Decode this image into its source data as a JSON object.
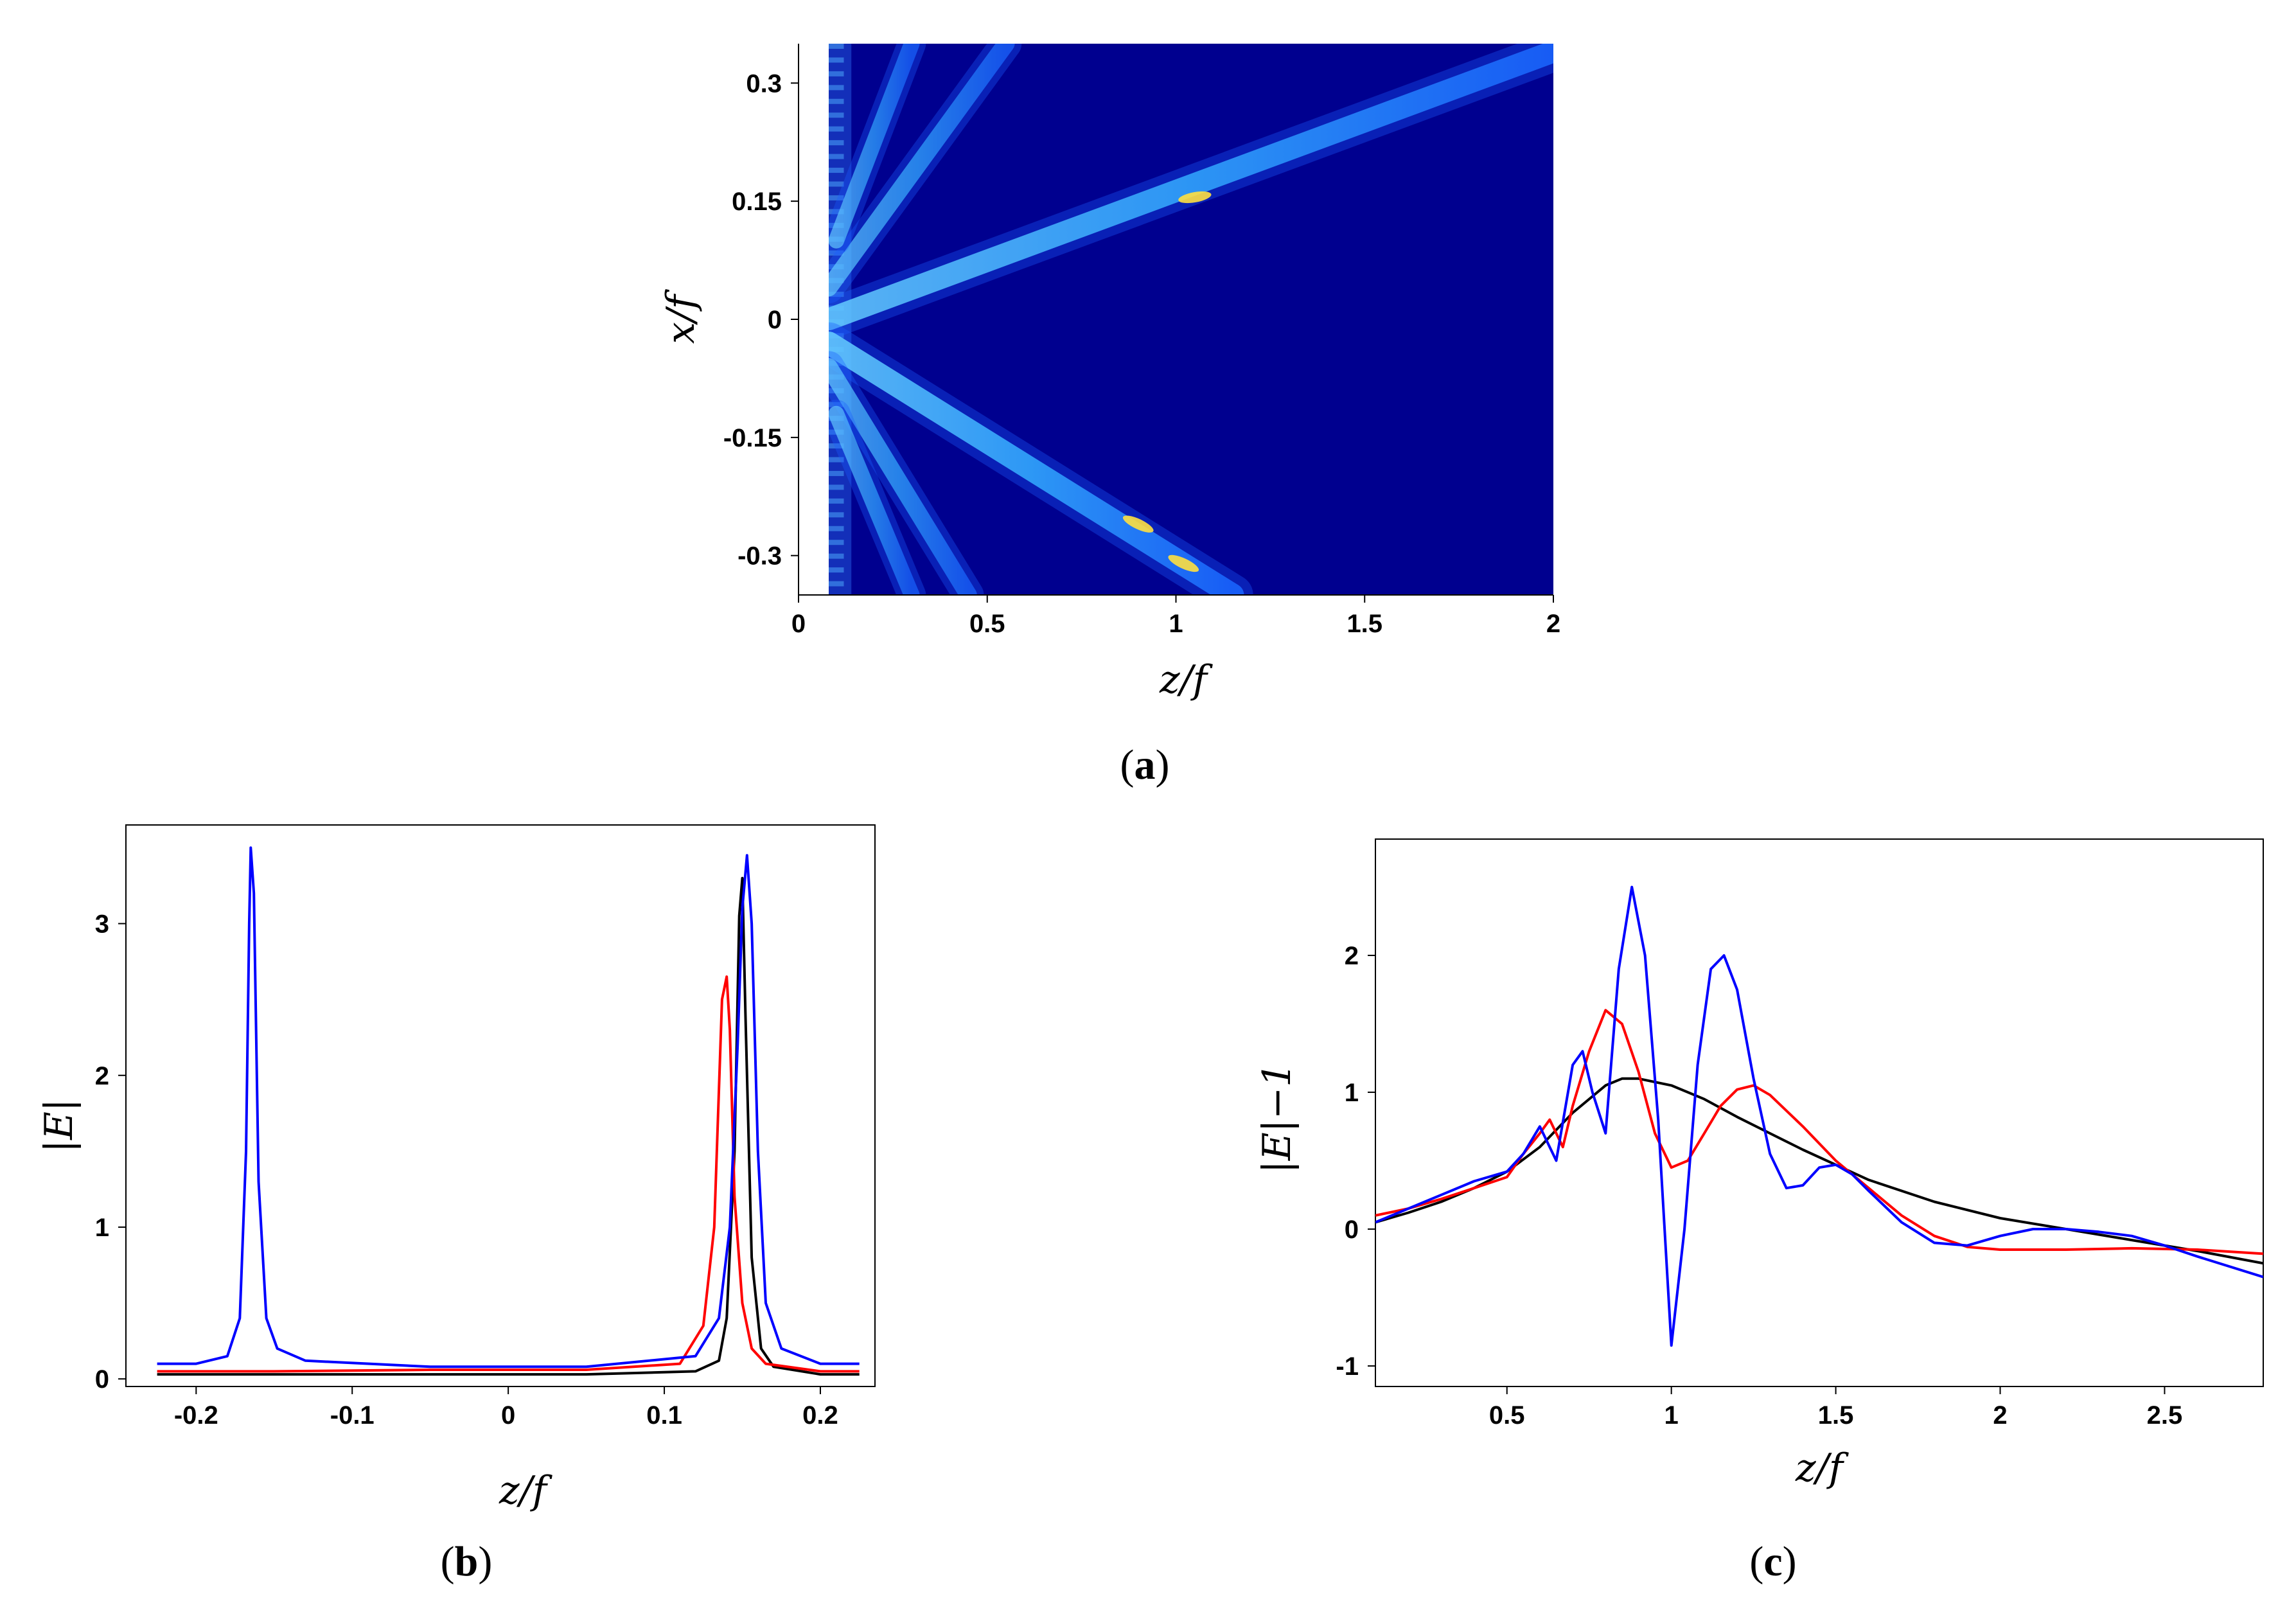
{
  "figure": {
    "panels": [
      "a",
      "b",
      "c"
    ]
  },
  "chart_data": [
    {
      "id": "a",
      "type": "heatmap",
      "caption": "a",
      "xlabel": "z/f",
      "ylabel": "x/f",
      "xlim": [
        0,
        2
      ],
      "ylim": [
        -0.35,
        0.35
      ],
      "xticks": [
        0,
        0.5,
        1,
        1.5,
        2
      ],
      "xtick_labels": [
        "0",
        "0.5",
        "1",
        "1.5",
        "2"
      ],
      "yticks": [
        0.3,
        0.15,
        0,
        -0.15,
        -0.3
      ],
      "ytick_labels": [
        "0.3",
        "0.15",
        "0",
        "-0.15",
        "-0.3"
      ],
      "colormap": "jet",
      "background": "#00008f",
      "beams": [
        {
          "z0": 0.08,
          "x0": 0.0,
          "z1": 2.0,
          "x1": 0.34,
          "intensity": 0.75
        },
        {
          "z0": 0.08,
          "x0": -0.03,
          "z1": 1.15,
          "x1": -0.35,
          "intensity": 0.8
        },
        {
          "z0": 0.08,
          "x0": 0.04,
          "z1": 0.55,
          "x1": 0.35,
          "intensity": 0.4
        },
        {
          "z0": 0.08,
          "x0": -0.06,
          "z1": 0.45,
          "x1": -0.35,
          "intensity": 0.4
        },
        {
          "z0": 0.1,
          "x0": 0.1,
          "z1": 0.3,
          "x1": 0.35,
          "intensity": 0.3
        },
        {
          "z0": 0.1,
          "x0": -0.12,
          "z1": 0.3,
          "x1": -0.35,
          "intensity": 0.3
        }
      ]
    },
    {
      "id": "b",
      "type": "line",
      "caption": "b",
      "xlabel": "z/f",
      "ylabel": "|E|",
      "xlim": [
        -0.245,
        0.235
      ],
      "ylim": [
        -0.05,
        3.65
      ],
      "xticks": [
        -0.2,
        -0.1,
        0,
        0.1,
        0.2
      ],
      "xtick_labels": [
        "-0.2",
        "-0.1",
        "0",
        "0.1",
        "0.2"
      ],
      "yticks": [
        0,
        1,
        2,
        3
      ],
      "ytick_labels": [
        "0",
        "1",
        "2",
        "3"
      ],
      "series": [
        {
          "name": "black",
          "color": "#000000",
          "x": [
            -0.225,
            -0.15,
            -0.05,
            0.05,
            0.12,
            0.135,
            0.14,
            0.145,
            0.148,
            0.15,
            0.152,
            0.156,
            0.162,
            0.17,
            0.2,
            0.225
          ],
          "y": [
            0.03,
            0.03,
            0.03,
            0.03,
            0.05,
            0.12,
            0.4,
            1.5,
            3.05,
            3.3,
            2.4,
            0.8,
            0.2,
            0.08,
            0.03,
            0.03
          ]
        },
        {
          "name": "red",
          "color": "#ff0000",
          "x": [
            -0.225,
            -0.15,
            -0.05,
            0.05,
            0.11,
            0.125,
            0.132,
            0.137,
            0.14,
            0.142,
            0.145,
            0.15,
            0.156,
            0.165,
            0.2,
            0.225
          ],
          "y": [
            0.05,
            0.05,
            0.06,
            0.06,
            0.1,
            0.35,
            1.0,
            2.5,
            2.65,
            2.3,
            1.2,
            0.5,
            0.2,
            0.1,
            0.05,
            0.05
          ]
        },
        {
          "name": "blue",
          "color": "#0000ff",
          "x": [
            -0.225,
            -0.2,
            -0.18,
            -0.172,
            -0.168,
            -0.166,
            -0.165,
            -0.163,
            -0.16,
            -0.155,
            -0.148,
            -0.13,
            -0.05,
            0.05,
            0.12,
            0.135,
            0.142,
            0.147,
            0.15,
            0.153,
            0.156,
            0.16,
            0.165,
            0.175,
            0.2,
            0.225
          ],
          "y": [
            0.1,
            0.1,
            0.15,
            0.4,
            1.5,
            3.0,
            3.5,
            3.2,
            1.3,
            0.4,
            0.2,
            0.12,
            0.08,
            0.08,
            0.15,
            0.4,
            1.0,
            2.2,
            3.1,
            3.45,
            3.0,
            1.5,
            0.5,
            0.2,
            0.1,
            0.1
          ]
        }
      ]
    },
    {
      "id": "c",
      "type": "line",
      "caption": "c",
      "xlabel": "z/f",
      "ylabel": "|E|−1",
      "xlim": [
        0.1,
        2.8
      ],
      "ylim": [
        -1.15,
        2.85
      ],
      "xticks": [
        0.5,
        1,
        1.5,
        2,
        2.5
      ],
      "xtick_labels": [
        "0.5",
        "1",
        "1.5",
        "2",
        "2.5"
      ],
      "yticks": [
        -1,
        0,
        1,
        2
      ],
      "ytick_labels": [
        "-1",
        "0",
        "1",
        "2"
      ],
      "series": [
        {
          "name": "black",
          "color": "#000000",
          "x": [
            0.1,
            0.2,
            0.3,
            0.4,
            0.5,
            0.6,
            0.7,
            0.8,
            0.85,
            0.9,
            1.0,
            1.1,
            1.2,
            1.3,
            1.4,
            1.5,
            1.6,
            1.8,
            2.0,
            2.2,
            2.4,
            2.6,
            2.8
          ],
          "y": [
            0.05,
            0.12,
            0.2,
            0.3,
            0.42,
            0.6,
            0.85,
            1.05,
            1.1,
            1.1,
            1.05,
            0.95,
            0.82,
            0.7,
            0.58,
            0.47,
            0.36,
            0.2,
            0.08,
            0.0,
            -0.08,
            -0.16,
            -0.25
          ]
        },
        {
          "name": "red",
          "color": "#ff0000",
          "x": [
            0.1,
            0.2,
            0.3,
            0.4,
            0.5,
            0.55,
            0.6,
            0.63,
            0.67,
            0.7,
            0.75,
            0.8,
            0.85,
            0.9,
            0.95,
            1.0,
            1.05,
            1.1,
            1.15,
            1.2,
            1.25,
            1.3,
            1.4,
            1.5,
            1.6,
            1.7,
            1.8,
            1.9,
            2.0,
            2.2,
            2.4,
            2.6,
            2.8
          ],
          "y": [
            0.1,
            0.15,
            0.22,
            0.3,
            0.38,
            0.55,
            0.7,
            0.8,
            0.6,
            0.9,
            1.3,
            1.6,
            1.5,
            1.15,
            0.7,
            0.45,
            0.5,
            0.7,
            0.9,
            1.02,
            1.05,
            0.98,
            0.75,
            0.5,
            0.3,
            0.1,
            -0.05,
            -0.13,
            -0.15,
            -0.15,
            -0.14,
            -0.15,
            -0.18
          ]
        },
        {
          "name": "blue",
          "color": "#0000ff",
          "x": [
            0.1,
            0.2,
            0.3,
            0.4,
            0.5,
            0.55,
            0.6,
            0.65,
            0.7,
            0.73,
            0.76,
            0.8,
            0.84,
            0.88,
            0.92,
            0.96,
            1.0,
            1.04,
            1.08,
            1.12,
            1.16,
            1.2,
            1.25,
            1.3,
            1.35,
            1.4,
            1.45,
            1.5,
            1.55,
            1.6,
            1.7,
            1.8,
            1.9,
            2.0,
            2.1,
            2.2,
            2.3,
            2.4,
            2.5,
            2.6,
            2.8
          ],
          "y": [
            0.05,
            0.15,
            0.25,
            0.35,
            0.42,
            0.55,
            0.75,
            0.5,
            1.2,
            1.3,
            1.0,
            0.7,
            1.9,
            2.5,
            2.0,
            0.8,
            -0.85,
            0.0,
            1.2,
            1.9,
            2.0,
            1.75,
            1.1,
            0.55,
            0.3,
            0.32,
            0.45,
            0.47,
            0.4,
            0.28,
            0.05,
            -0.1,
            -0.12,
            -0.05,
            0.0,
            0.0,
            -0.02,
            -0.05,
            -0.12,
            -0.2,
            -0.35
          ]
        }
      ]
    }
  ]
}
